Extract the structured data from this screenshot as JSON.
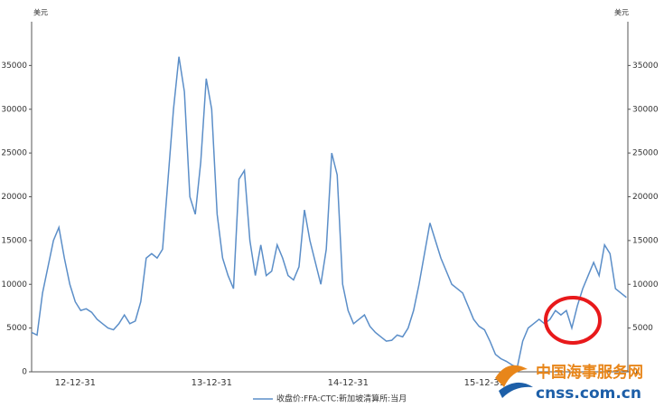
{
  "chart_data": {
    "type": "line",
    "y_label": "美元",
    "y2_label": "美元",
    "categories": [
      null,
      null,
      null,
      null,
      null,
      null,
      null,
      null,
      "12-12-31",
      null,
      null,
      null,
      null,
      null,
      null,
      null,
      null,
      null,
      null,
      null,
      null,
      null,
      null,
      null,
      null,
      null,
      null,
      null,
      null,
      null,
      null,
      null,
      null,
      "13-12-31",
      null,
      null,
      null,
      null,
      null,
      null,
      null,
      null,
      null,
      null,
      null,
      null,
      null,
      null,
      null,
      null,
      null,
      null,
      null,
      null,
      null,
      null,
      null,
      null,
      "14-12-31",
      null,
      null,
      null,
      null,
      null,
      null,
      null,
      null,
      null,
      null,
      null,
      null,
      null,
      null,
      null,
      null,
      null,
      null,
      null,
      null,
      null,
      null,
      null,
      null,
      "15-12-31",
      null,
      null,
      null,
      null,
      null,
      null,
      null,
      null,
      null,
      null,
      null,
      null,
      null,
      null,
      null,
      null,
      null,
      null,
      null,
      null,
      null,
      null,
      null,
      null,
      null,
      null
    ],
    "series": [
      {
        "name": "收盘价:FFA:CTC:新加坡清算所:当月",
        "color": "#5b8ec8",
        "values": [
          4500,
          4200,
          9000,
          12000,
          15000,
          16500,
          13000,
          10000,
          8000,
          7000,
          7200,
          6800,
          6000,
          5500,
          5000,
          4800,
          5500,
          6500,
          5500,
          5800,
          8000,
          13000,
          13500,
          13000,
          14000,
          22000,
          30000,
          36000,
          32000,
          20000,
          18000,
          24000,
          33500,
          30000,
          18000,
          13000,
          11000,
          9500,
          22000,
          23000,
          15000,
          11000,
          14500,
          11000,
          11500,
          14500,
          13000,
          11000,
          10500,
          12000,
          18500,
          15000,
          12500,
          10000,
          14000,
          25000,
          22500,
          10000,
          7000,
          5500,
          6000,
          6500,
          5200,
          4500,
          4000,
          3500,
          3600,
          4200,
          4000,
          5000,
          7000,
          10000,
          13500,
          17000,
          15000,
          13000,
          11500,
          10000,
          9500,
          9000,
          7500,
          6000,
          5200,
          4800,
          3500,
          2000,
          1500,
          1200,
          800,
          500,
          3500,
          5000,
          5500,
          6000,
          5500,
          6000,
          7000,
          6500,
          7000,
          5000,
          7500,
          9500,
          11000,
          12500,
          11000,
          14500,
          13500,
          9500,
          9000,
          8500
        ]
      }
    ],
    "ylim": [
      0,
      40000
    ],
    "yticks": [
      0,
      5000,
      10000,
      15000,
      20000,
      25000,
      30000,
      35000
    ],
    "y2lim": [
      0,
      40000
    ],
    "y2ticks": [
      0,
      5000,
      10000,
      15000,
      20000,
      25000,
      30000,
      35000
    ],
    "grid": false,
    "legend": "bottom",
    "watermark": {
      "name": "中国海事服务网",
      "url": "cnss.com.cn"
    }
  }
}
